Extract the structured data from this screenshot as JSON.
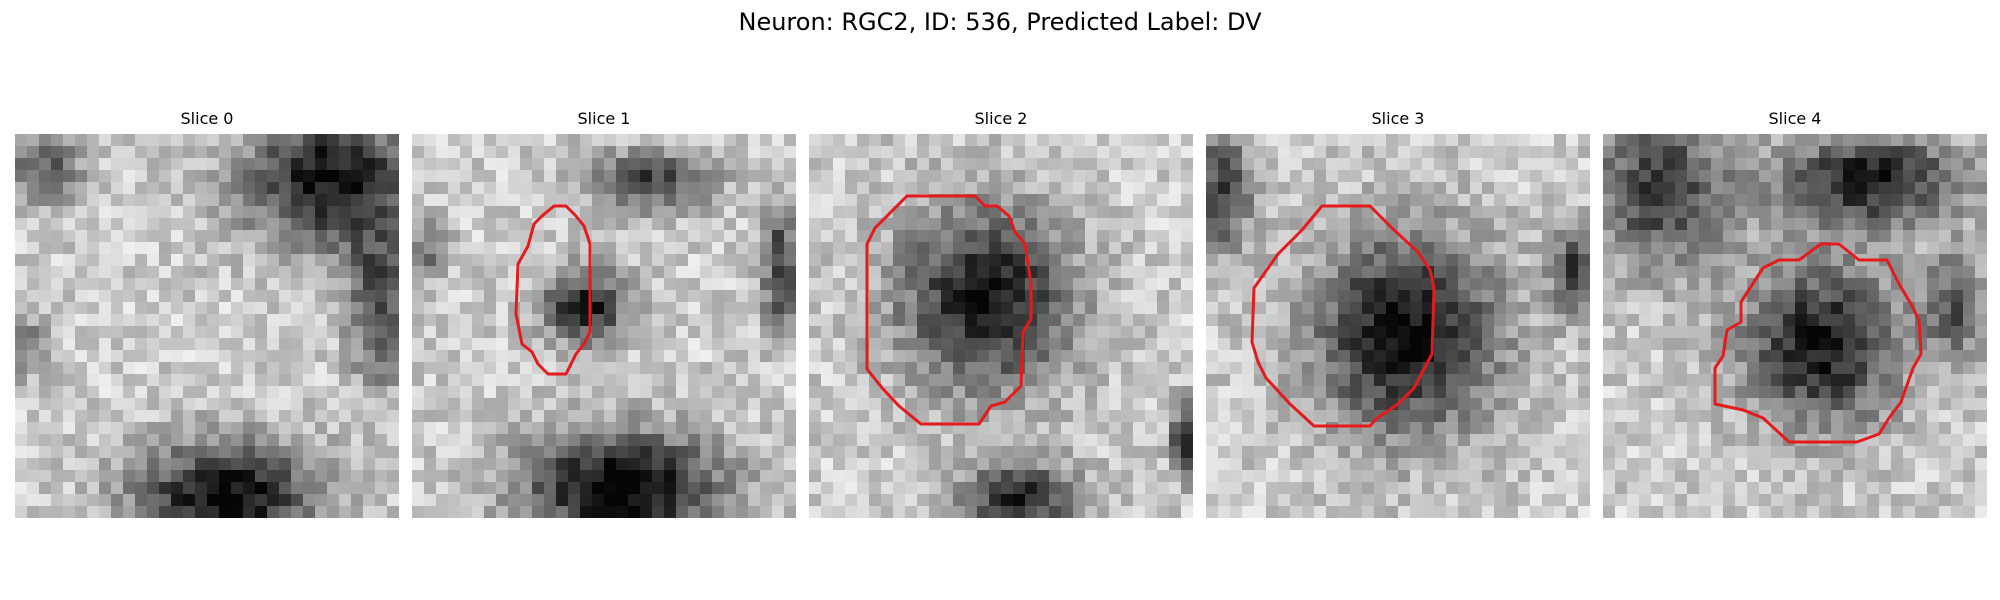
{
  "figure": {
    "title": "Neuron: RGC2, ID: 536, Predicted Label: DV",
    "contour_color": "#e41a1c"
  },
  "panels": [
    {
      "title": "Slice 0"
    },
    {
      "title": "Slice 1"
    },
    {
      "title": "Slice 2"
    },
    {
      "title": "Slice 3"
    },
    {
      "title": "Slice 4"
    }
  ]
}
